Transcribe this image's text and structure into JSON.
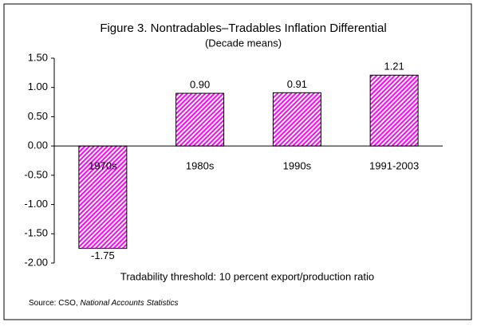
{
  "chart_data": {
    "type": "bar",
    "title": "Figure 3. Nontradables–Tradables Inflation Differential",
    "subtitle": "(Decade means)",
    "x_label": "Tradability threshold: 10 percent export/production ratio",
    "source": {
      "text": "Source: CSO,",
      "publication": "National Accounts Statistics"
    },
    "categories": [
      "1970s",
      "1980s",
      "1990s",
      "1991-2003"
    ],
    "values": [
      -1.75,
      0.9,
      0.91,
      1.21
    ],
    "value_labels": [
      "-1.75",
      "0.90",
      "0.91",
      "1.21"
    ],
    "color": "#ff00ff",
    "ylim": [
      -2,
      1.5
    ],
    "yticks": [
      {
        "value": 1.5,
        "label": "1.50"
      },
      {
        "value": 1,
        "label": "1.00"
      },
      {
        "value": 0.5,
        "label": "0.50"
      },
      {
        "value": 0,
        "label": "0.00"
      },
      {
        "value": -0.5,
        "label": "-0.50"
      },
      {
        "value": -1,
        "label": "-1.00"
      },
      {
        "value": -1.5,
        "label": "-1.50"
      },
      {
        "value": -2,
        "label": "-2.00"
      }
    ],
    "grid": false
  }
}
